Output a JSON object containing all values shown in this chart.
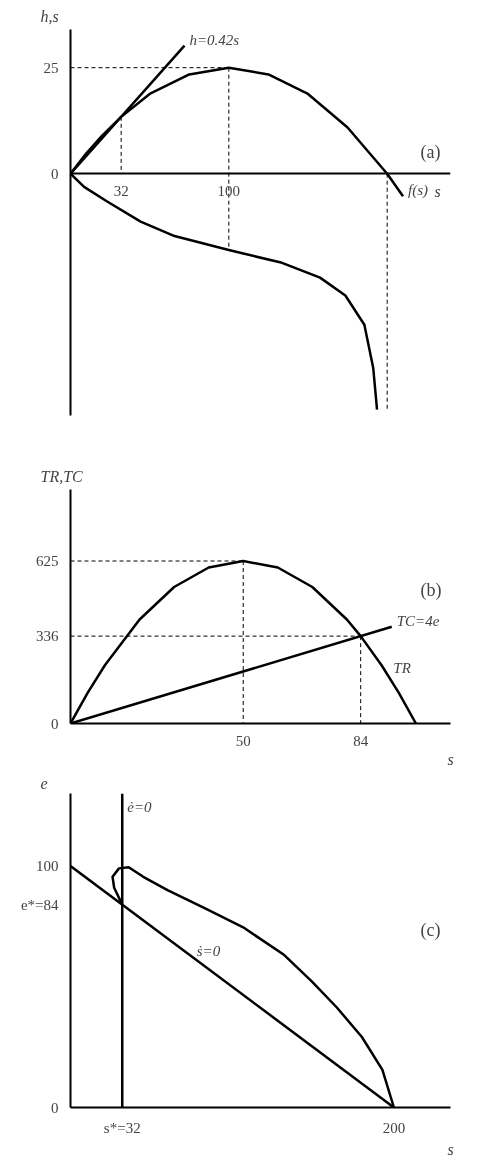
{
  "chart_data": [
    {
      "type": "line",
      "title": "(a)",
      "xlabel": "s",
      "ylabel": "h,s",
      "xlim": [
        0,
        240
      ],
      "ylim": [
        -57,
        34
      ],
      "xticks": [
        32,
        100
      ],
      "yticks": [
        0,
        25
      ],
      "grid": false,
      "series": [
        {
          "color": "#000000",
          "line_style": "solid",
          "x": [
            0,
            10,
            20,
            32,
            50,
            75,
            100,
            125,
            150,
            175,
            200,
            210
          ],
          "values": [
            0,
            4.8,
            9,
            13.4,
            18.8,
            23.4,
            25,
            23.4,
            18.8,
            10.9,
            0,
            -5.3
          ]
        },
        {
          "color": "#000000",
          "line_style": "solid",
          "x": [
            0,
            72
          ],
          "values": [
            0,
            30.2
          ]
        },
        {
          "color": "#000000",
          "line_style": "solid",
          "x": [
            0,
            8.6,
            22.9,
            44.3,
            65.7,
            100,
            133.6,
            157.6,
            173.6,
            185.6,
            191.2,
            193.6
          ],
          "values": [
            0,
            -3.1,
            -6.5,
            -11.3,
            -14.7,
            -18,
            -21,
            -24.5,
            -28.7,
            -35.6,
            -45.8,
            -55.6
          ]
        },
        {
          "color": "#000000",
          "line_style": "dashed",
          "x": [
            0,
            100
          ],
          "values": [
            25,
            25
          ]
        },
        {
          "color": "#000000",
          "line_style": "dashed",
          "x": [
            100,
            100
          ],
          "values": [
            25,
            -18
          ]
        },
        {
          "color": "#000000",
          "line_style": "dashed",
          "x": [
            32,
            32
          ],
          "values": [
            13.4,
            0
          ]
        },
        {
          "color": "#000000",
          "line_style": "dashed",
          "x": [
            200,
            200
          ],
          "values": [
            0,
            -56
          ]
        }
      ],
      "annotations": [
        {
          "text": "h=0.42s",
          "x": 72,
          "y": 30.2
        },
        {
          "text": "f(s)",
          "x": 210,
          "y": -5.3
        }
      ]
    },
    {
      "type": "line",
      "title": "(b)",
      "xlabel": "s",
      "ylabel": "TR,TC",
      "xlim": [
        0,
        110
      ],
      "ylim": [
        0,
        900
      ],
      "xticks": [
        50,
        84
      ],
      "yticks": [
        0,
        336,
        625
      ],
      "grid": false,
      "series": [
        {
          "color": "#000000",
          "line_style": "solid",
          "x": [
            0,
            5,
            10,
            20,
            30,
            40,
            50,
            60,
            70,
            80,
            84,
            90,
            95,
            100
          ],
          "values": [
            0,
            119,
            225,
            400,
            525,
            600,
            625,
            600,
            525,
            400,
            336,
            225,
            119,
            0
          ]
        },
        {
          "color": "#000000",
          "line_style": "solid",
          "x": [
            0,
            93
          ],
          "values": [
            0,
            372
          ]
        },
        {
          "color": "#000000",
          "line_style": "dashed",
          "x": [
            0,
            50
          ],
          "values": [
            625,
            625
          ]
        },
        {
          "color": "#000000",
          "line_style": "dashed",
          "x": [
            50,
            50
          ],
          "values": [
            625,
            0
          ]
        },
        {
          "color": "#000000",
          "line_style": "dashed",
          "x": [
            0,
            84
          ],
          "values": [
            336,
            336
          ]
        },
        {
          "color": "#000000",
          "line_style": "dashed",
          "x": [
            84,
            84
          ],
          "values": [
            336,
            0
          ]
        }
      ],
      "annotations": [
        {
          "text": "TC=4e",
          "x": 93,
          "y": 372
        },
        {
          "text": "TR",
          "x": 92,
          "y": 190
        }
      ]
    },
    {
      "type": "line",
      "title": "(c)",
      "xlabel": "s",
      "ylabel": "e",
      "xlim": [
        0,
        235
      ],
      "ylim": [
        0,
        130
      ],
      "xticks": [
        {
          "value": 32,
          "label": "s*=32"
        },
        200
      ],
      "yticks": [
        0,
        100,
        {
          "value": 84,
          "label": "e*=84"
        }
      ],
      "grid": false,
      "ref_lines": [
        {
          "axis": "x",
          "value": 32,
          "color": "#000000",
          "line_style": "solid"
        }
      ],
      "series": [
        {
          "color": "#000000",
          "line_style": "solid",
          "x": [
            0,
            200
          ],
          "values": [
            100,
            0
          ]
        },
        {
          "color": "#000000",
          "line_style": "solid",
          "x": [
            200,
            192.9,
            180.2,
            164.7,
            149.2,
            132.2,
            106.8,
            84.2,
            60,
            45,
            36,
            30,
            26,
            27,
            32
          ],
          "values": [
            0,
            15.6,
            29.2,
            41.4,
            52.2,
            63.1,
            74.6,
            82.1,
            90,
            95.5,
            99.5,
            99,
            95.5,
            91,
            84
          ]
        }
      ],
      "annotations": [
        {
          "text": "ė=0",
          "x": 32,
          "y": 122
        },
        {
          "text": "ṡ=0",
          "x": 75,
          "y": 62.5
        }
      ]
    }
  ]
}
